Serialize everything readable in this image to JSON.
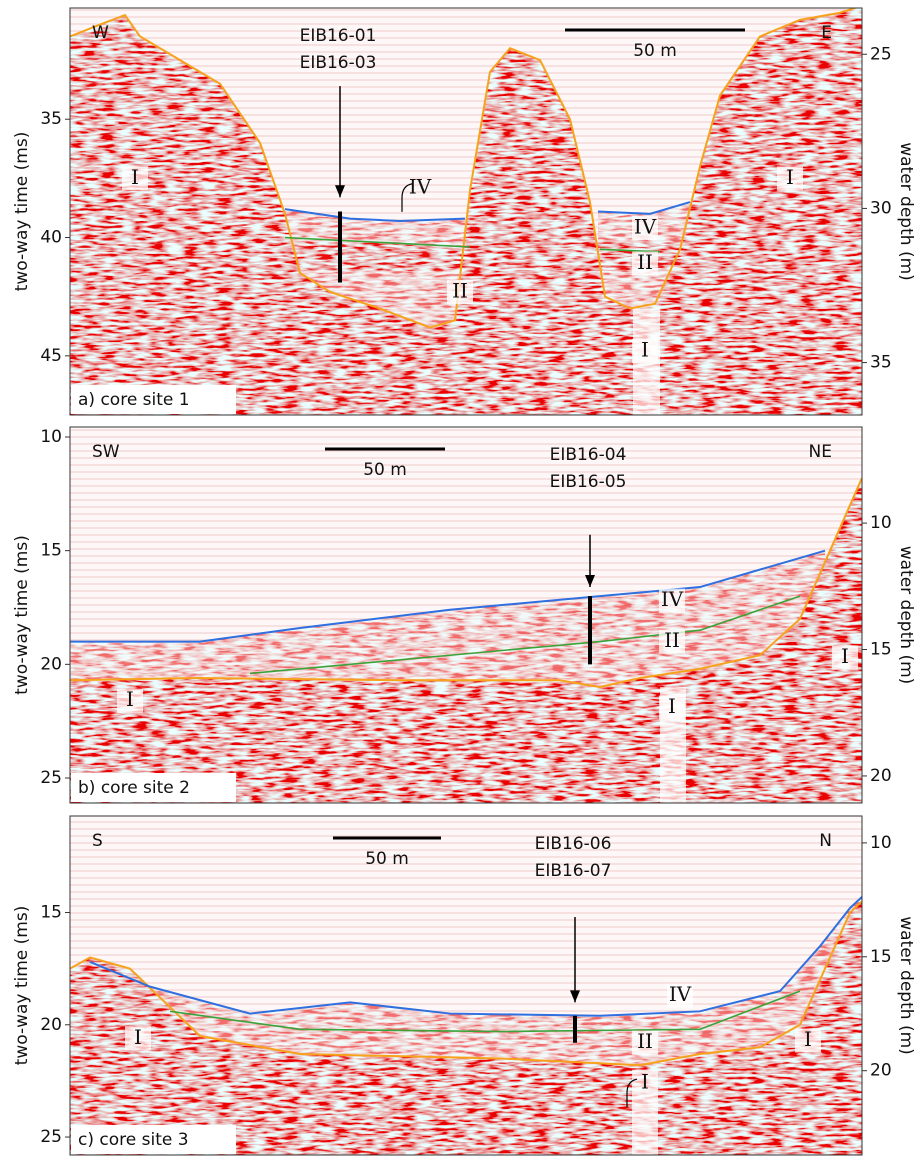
{
  "y_label": "two-way time (ms)",
  "y2_label": "water depth (m)",
  "panels": [
    {
      "label": "a) core site 1",
      "left": "W",
      "right": "E",
      "cores": [
        "EIB16-01",
        "EIB16-03"
      ],
      "scale": "50 m",
      "units": [
        "I",
        "IV",
        "II",
        "IV",
        "II",
        "I",
        "I"
      ],
      "ylim": [
        30.3,
        47.5
      ],
      "yticks": [
        35,
        40,
        45
      ],
      "y2lim": [
        23.5,
        36.7
      ],
      "y2ticks": [
        25,
        30,
        35
      ]
    },
    {
      "label": "b) core site 2",
      "left": "SW",
      "right": "NE",
      "cores": [
        "EIB16-04",
        "EIB16-05"
      ],
      "scale": "50 m",
      "units": [
        "IV",
        "II",
        "I",
        "I",
        "I"
      ],
      "ylim": [
        9.56,
        26.1
      ],
      "yticks": [
        10,
        15,
        20,
        25
      ],
      "y2lim": [
        6.2,
        21.07
      ],
      "y2ticks": [
        10,
        15,
        20
      ]
    },
    {
      "label": "c) core site 3",
      "left": "S",
      "right": "N",
      "cores": [
        "EIB16-06",
        "EIB16-07"
      ],
      "scale": "50 m",
      "units": [
        "IV",
        "II",
        "I",
        "I",
        "I"
      ],
      "ylim": [
        10.7,
        25.8
      ],
      "yticks": [
        15,
        20,
        25
      ],
      "y2lim": [
        8.82,
        23.7
      ],
      "y2ticks": [
        10,
        15,
        20
      ]
    }
  ]
}
